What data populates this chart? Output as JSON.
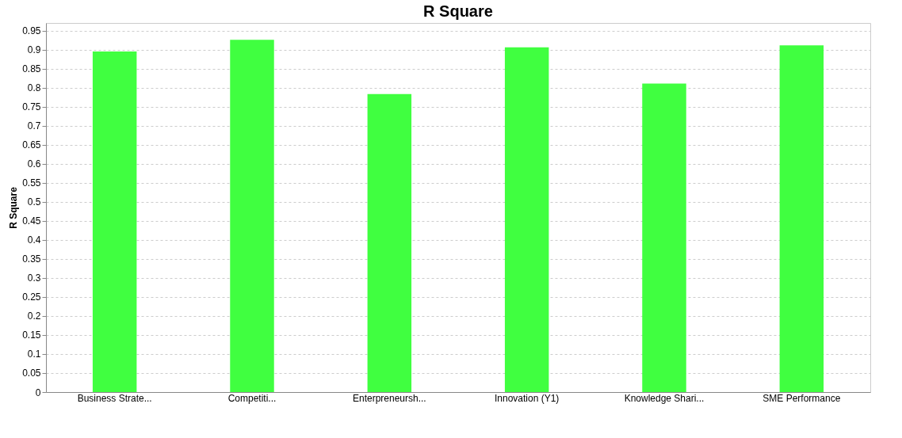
{
  "chart_data": {
    "type": "bar",
    "title": "R Square",
    "ylabel": "R Square",
    "categories": [
      "Business Strate...",
      "Competiti...",
      "Enterpreneursh...",
      "Innovation (Y1)",
      "Knowledge Shari...",
      "SME Performance"
    ],
    "values": [
      0.895,
      0.926,
      0.783,
      0.906,
      0.811,
      0.911
    ],
    "color": "#40ff40",
    "ylim": [
      0,
      0.97
    ],
    "yticks": [
      0,
      0.05,
      0.1,
      0.15,
      0.2,
      0.25,
      0.3,
      0.35,
      0.4,
      0.45,
      0.5,
      0.55,
      0.6,
      0.65,
      0.7,
      0.75,
      0.8,
      0.85,
      0.9,
      0.95
    ],
    "grid": "y"
  }
}
